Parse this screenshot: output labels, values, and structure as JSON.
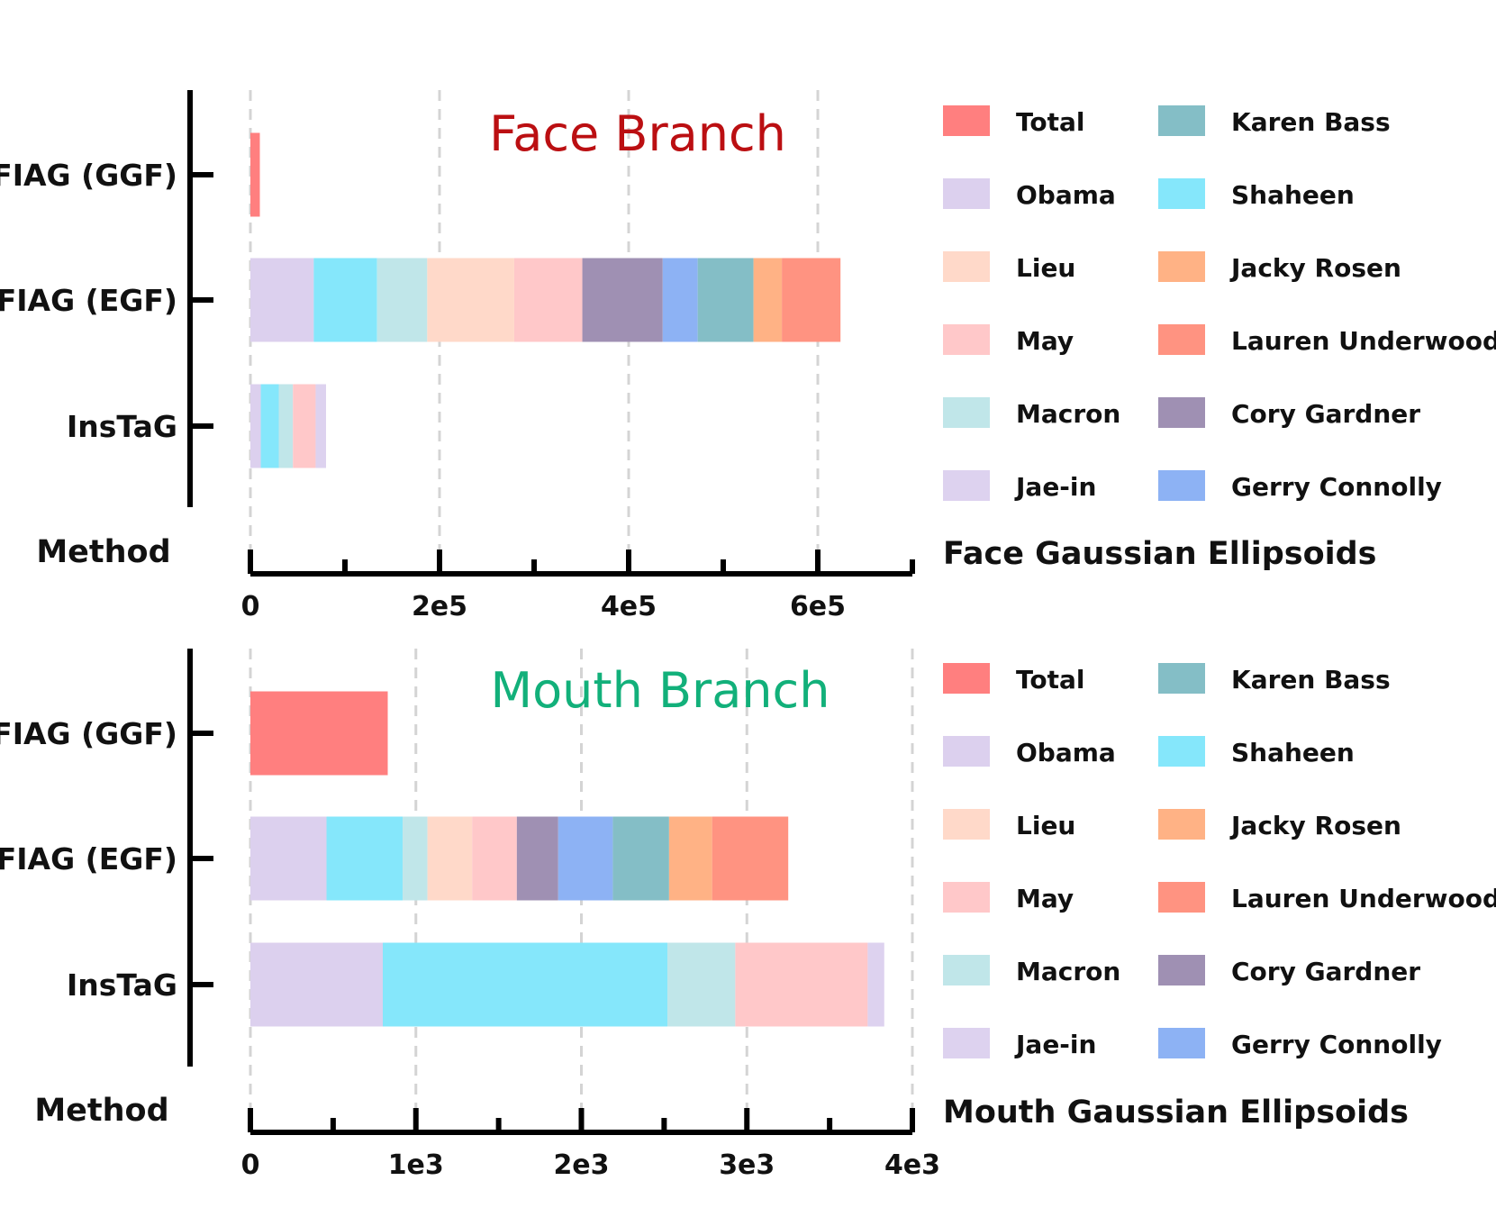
{
  "colors": {
    "Total": "#ff7f7f",
    "Obama": "#dcd0ee",
    "Lieu": "#ffd9c9",
    "May": "#ffc8c9",
    "Macron": "#c0e6e9",
    "Jae-in": "#ddd2ef",
    "Karen Bass": "#84bec6",
    "Shaheen": "#85e7fb",
    "Jacky Rosen": "#ffb285",
    "Lauren Underwood": "#ff9381",
    "Cory Gardner": "#9f90b3",
    "Gerry Connolly": "#8db2f4",
    "face_title": "#bb0f12",
    "mouth_title": "#12b07a"
  },
  "legend_left": [
    "Total",
    "Obama",
    "Lieu",
    "May",
    "Macron",
    "Jae-in"
  ],
  "legend_right": [
    "Karen Bass",
    "Shaheen",
    "Jacky Rosen",
    "Lauren Underwood",
    "Cory Gardner",
    "Gerry Connolly"
  ],
  "chart_data": [
    {
      "type": "bar",
      "orientation": "horizontal",
      "stacked": true,
      "title": "Face Branch",
      "xlabel": "Face Gaussian Ellipsoids",
      "ylabel": "Method",
      "xlim": [
        0,
        700000
      ],
      "xticks": [
        0,
        200000,
        400000,
        600000
      ],
      "xtick_labels": [
        "0",
        "2e5",
        "4e5",
        "6e5"
      ],
      "grid": true,
      "categories": [
        "FIAG (GGF)",
        "FIAG (EGF)",
        "InsTaG"
      ],
      "rows": [
        {
          "method": "FIAG (GGF)",
          "segments": [
            {
              "name": "Total",
              "value": 10000
            }
          ]
        },
        {
          "method": "FIAG (EGF)",
          "segments": [
            {
              "name": "Obama",
              "value": 67000
            },
            {
              "name": "Shaheen",
              "value": 67000
            },
            {
              "name": "Macron",
              "value": 53000
            },
            {
              "name": "Lieu",
              "value": 92000
            },
            {
              "name": "May",
              "value": 72000
            },
            {
              "name": "Cory Gardner",
              "value": 85000
            },
            {
              "name": "Gerry Connolly",
              "value": 37000
            },
            {
              "name": "Karen Bass",
              "value": 59000
            },
            {
              "name": "Jacky Rosen",
              "value": 30000
            },
            {
              "name": "Lauren Underwood",
              "value": 62000
            }
          ]
        },
        {
          "method": "InsTaG",
          "segments": [
            {
              "name": "Obama",
              "value": 11000
            },
            {
              "name": "Shaheen",
              "value": 19000
            },
            {
              "name": "Macron",
              "value": 15000
            },
            {
              "name": "May",
              "value": 24000
            },
            {
              "name": "Jae-in",
              "value": 11000
            }
          ]
        }
      ]
    },
    {
      "type": "bar",
      "orientation": "horizontal",
      "stacked": true,
      "title": "Mouth Branch",
      "xlabel": "Mouth Gaussian Ellipsoids",
      "ylabel": "Method",
      "xlim": [
        0,
        4000
      ],
      "xticks": [
        0,
        1000,
        2000,
        3000,
        4000
      ],
      "xtick_labels": [
        "0",
        "1e3",
        "2e3",
        "3e3",
        "4e3"
      ],
      "grid": true,
      "categories": [
        "FIAG (GGF)",
        "FIAG (EGF)",
        "InsTaG"
      ],
      "rows": [
        {
          "method": "FIAG (GGF)",
          "segments": [
            {
              "name": "Total",
              "value": 830
            }
          ]
        },
        {
          "method": "FIAG (EGF)",
          "segments": [
            {
              "name": "Obama",
              "value": 460
            },
            {
              "name": "Shaheen",
              "value": 460
            },
            {
              "name": "Macron",
              "value": 150
            },
            {
              "name": "Lieu",
              "value": 270
            },
            {
              "name": "May",
              "value": 270
            },
            {
              "name": "Cory Gardner",
              "value": 250
            },
            {
              "name": "Gerry Connolly",
              "value": 330
            },
            {
              "name": "Karen Bass",
              "value": 340
            },
            {
              "name": "Jacky Rosen",
              "value": 260
            },
            {
              "name": "Lauren Underwood",
              "value": 460
            }
          ]
        },
        {
          "method": "InsTaG",
          "segments": [
            {
              "name": "Obama",
              "value": 800
            },
            {
              "name": "Shaheen",
              "value": 1720
            },
            {
              "name": "Macron",
              "value": 410
            },
            {
              "name": "May",
              "value": 800
            },
            {
              "name": "Jae-in",
              "value": 100
            }
          ]
        }
      ]
    }
  ]
}
